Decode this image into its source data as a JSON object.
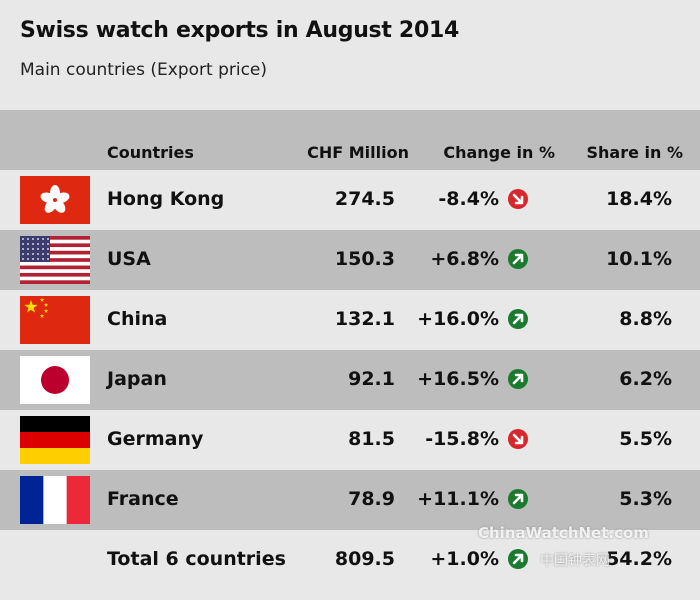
{
  "chart_data": {
    "type": "table",
    "title": "Swiss watch exports in August 2014",
    "subtitle": "Main countries (Export price)",
    "columns": [
      "Countries",
      "CHF Million",
      "Change in %",
      "Share in %"
    ],
    "rows": [
      {
        "country": "Hong Kong",
        "chf": "274.5",
        "change": "-8.4%",
        "direction": "down",
        "share": "18.4%",
        "flag": "hong-kong-flag-icon"
      },
      {
        "country": "USA",
        "chf": "150.3",
        "change": "+6.8%",
        "direction": "up",
        "share": "10.1%",
        "flag": "usa-flag-icon"
      },
      {
        "country": "China",
        "chf": "132.1",
        "change": "+16.0%",
        "direction": "up",
        "share": "8.8%",
        "flag": "china-flag-icon"
      },
      {
        "country": "Japan",
        "chf": "92.1",
        "change": "+16.5%",
        "direction": "up",
        "share": "6.2%",
        "flag": "japan-flag-icon"
      },
      {
        "country": "Germany",
        "chf": "81.5",
        "change": "-15.8%",
        "direction": "down",
        "share": "5.5%",
        "flag": "germany-flag-icon"
      },
      {
        "country": "France",
        "chf": "78.9",
        "change": "+11.1%",
        "direction": "up",
        "share": "5.3%",
        "flag": "france-flag-icon"
      }
    ],
    "total": {
      "country": "Total 6 countries",
      "chf": "809.5",
      "change": "+1.0%",
      "direction": "up",
      "share": "54.2%"
    }
  },
  "watermark": {
    "text": "ChinaWatchNet.com",
    "text_cn": "中国钟表网"
  },
  "colors": {
    "up": "#1a7a2e",
    "down": "#d9262c",
    "row_alt": "#bdbdbd",
    "background": "#e8e8e8"
  }
}
